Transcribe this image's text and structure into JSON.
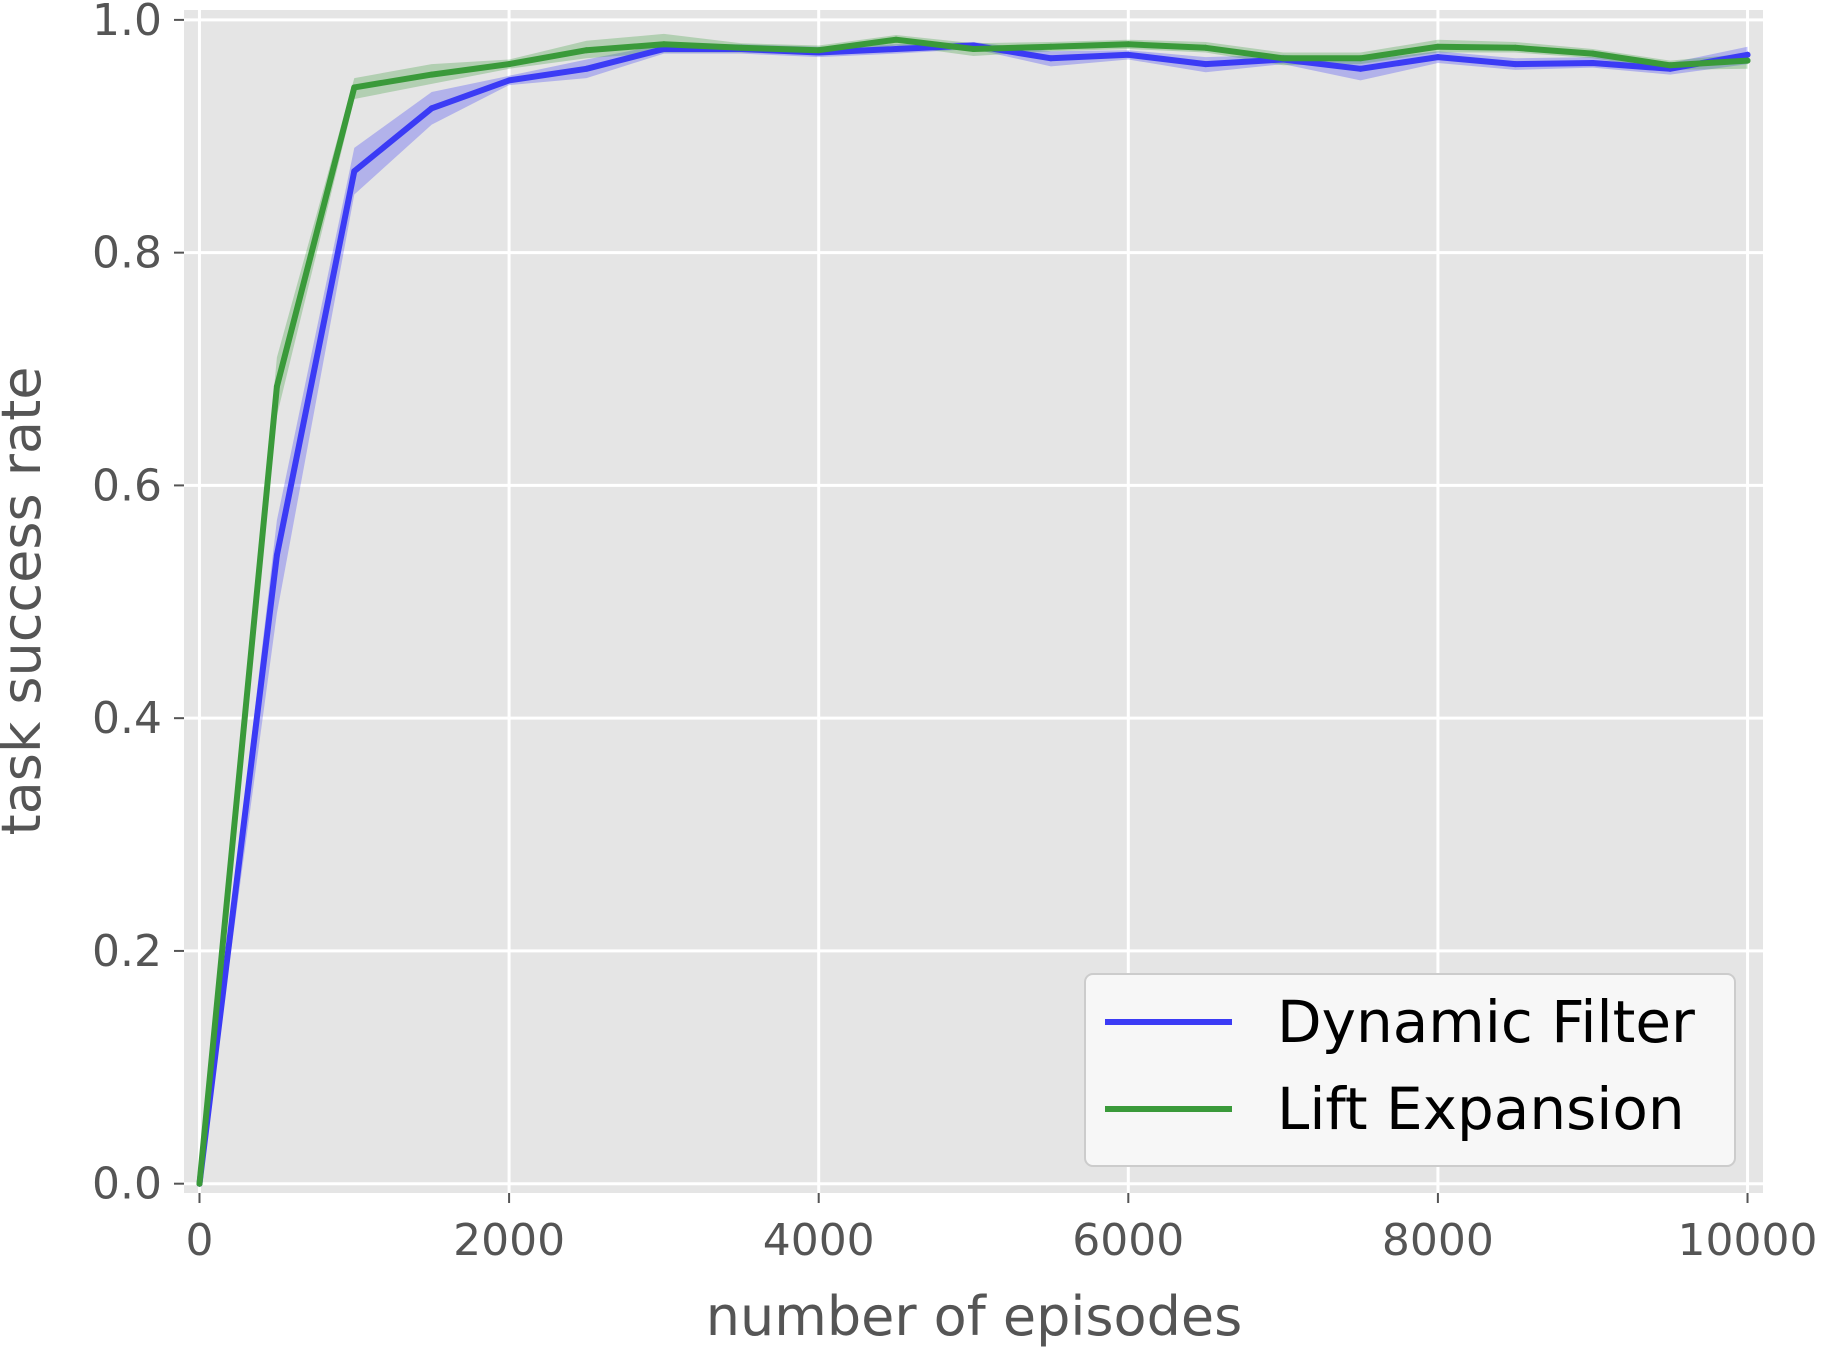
{
  "chart_data": {
    "type": "line",
    "title": "",
    "xlabel": "number of episodes",
    "ylabel": "task success rate",
    "xlim": [
      -100,
      10100
    ],
    "ylim": [
      0.0,
      1.0
    ],
    "xticks": [
      0,
      2000,
      4000,
      6000,
      8000,
      10000
    ],
    "xtick_labels": [
      "0",
      "2000",
      "4000",
      "6000",
      "8000",
      "10000"
    ],
    "yticks": [
      0.0,
      0.2,
      0.4,
      0.6,
      0.8,
      1.0
    ],
    "ytick_labels": [
      "0.0",
      "0.2",
      "0.4",
      "0.6",
      "0.8",
      "1.0"
    ],
    "grid": true,
    "legend_position": "lower-right",
    "x": [
      0,
      500,
      1000,
      1500,
      2000,
      2500,
      3000,
      3500,
      4000,
      4500,
      5000,
      5500,
      6000,
      6500,
      7000,
      7500,
      8000,
      8500,
      9000,
      9500,
      10000
    ],
    "series": [
      {
        "name": "Dynamic Filter",
        "color": "#3b3bf5",
        "values": [
          0.0,
          0.54,
          0.87,
          0.924,
          0.948,
          0.958,
          0.975,
          0.975,
          0.972,
          0.975,
          0.978,
          0.967,
          0.97,
          0.962,
          0.966,
          0.958,
          0.968,
          0.962,
          0.963,
          0.958,
          0.97
        ],
        "lower": [
          0.0,
          0.49,
          0.85,
          0.91,
          0.944,
          0.95,
          0.971,
          0.971,
          0.968,
          0.971,
          0.975,
          0.96,
          0.966,
          0.955,
          0.962,
          0.948,
          0.963,
          0.957,
          0.959,
          0.953,
          0.962
        ],
        "upper": [
          0.0,
          0.57,
          0.89,
          0.938,
          0.952,
          0.966,
          0.979,
          0.979,
          0.977,
          0.979,
          0.981,
          0.973,
          0.974,
          0.968,
          0.97,
          0.965,
          0.973,
          0.967,
          0.968,
          0.963,
          0.977
        ]
      },
      {
        "name": "Lift Expansion",
        "color": "#3a9a3a",
        "values": [
          0.0,
          0.685,
          0.942,
          0.953,
          0.962,
          0.974,
          0.979,
          0.976,
          0.974,
          0.983,
          0.975,
          0.977,
          0.979,
          0.976,
          0.967,
          0.967,
          0.977,
          0.976,
          0.971,
          0.961,
          0.965
        ],
        "lower": [
          0.0,
          0.66,
          0.932,
          0.945,
          0.958,
          0.967,
          0.972,
          0.972,
          0.97,
          0.978,
          0.969,
          0.973,
          0.975,
          0.972,
          0.961,
          0.962,
          0.972,
          0.972,
          0.967,
          0.957,
          0.958
        ],
        "upper": [
          0.0,
          0.71,
          0.95,
          0.962,
          0.966,
          0.982,
          0.988,
          0.98,
          0.978,
          0.987,
          0.98,
          0.981,
          0.983,
          0.981,
          0.972,
          0.972,
          0.983,
          0.981,
          0.975,
          0.965,
          0.971
        ]
      }
    ]
  },
  "colors": {
    "plot_background": "#e5e5e5",
    "grid": "#ffffff",
    "text": "#555555",
    "legend_background": "#f7f7f7",
    "legend_border": "#cccccc"
  }
}
